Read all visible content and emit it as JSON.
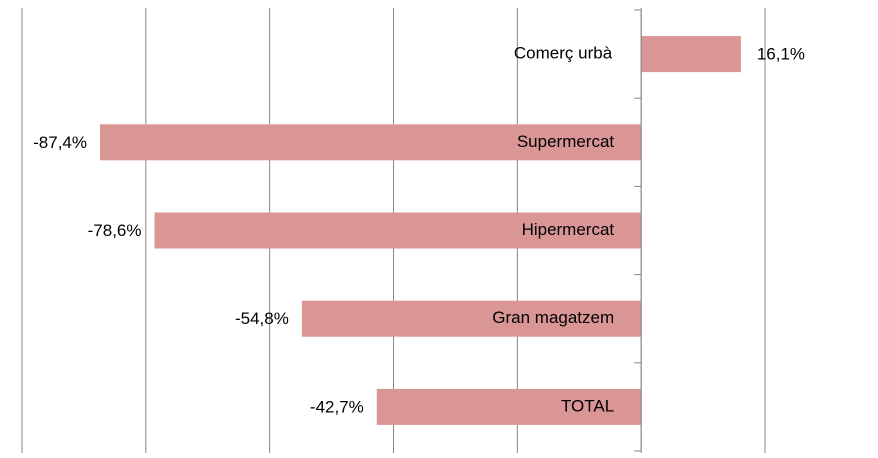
{
  "chart_data": {
    "type": "hbar",
    "categories": [
      "Comerç urbà",
      "Supermercat",
      "Hipermercat",
      "Gran magatzem",
      "TOTAL"
    ],
    "values": [
      16.1,
      -87.4,
      -78.6,
      -54.8,
      -42.7
    ],
    "value_labels": [
      "16,1%",
      "-87,4%",
      "-78,6%",
      "-54,8%",
      "-42,7%"
    ],
    "color": "#d99694",
    "xlim": [
      -100,
      20
    ],
    "xticks": [
      -100,
      -80,
      -60,
      -40,
      -20,
      0,
      20
    ],
    "grid": true
  }
}
